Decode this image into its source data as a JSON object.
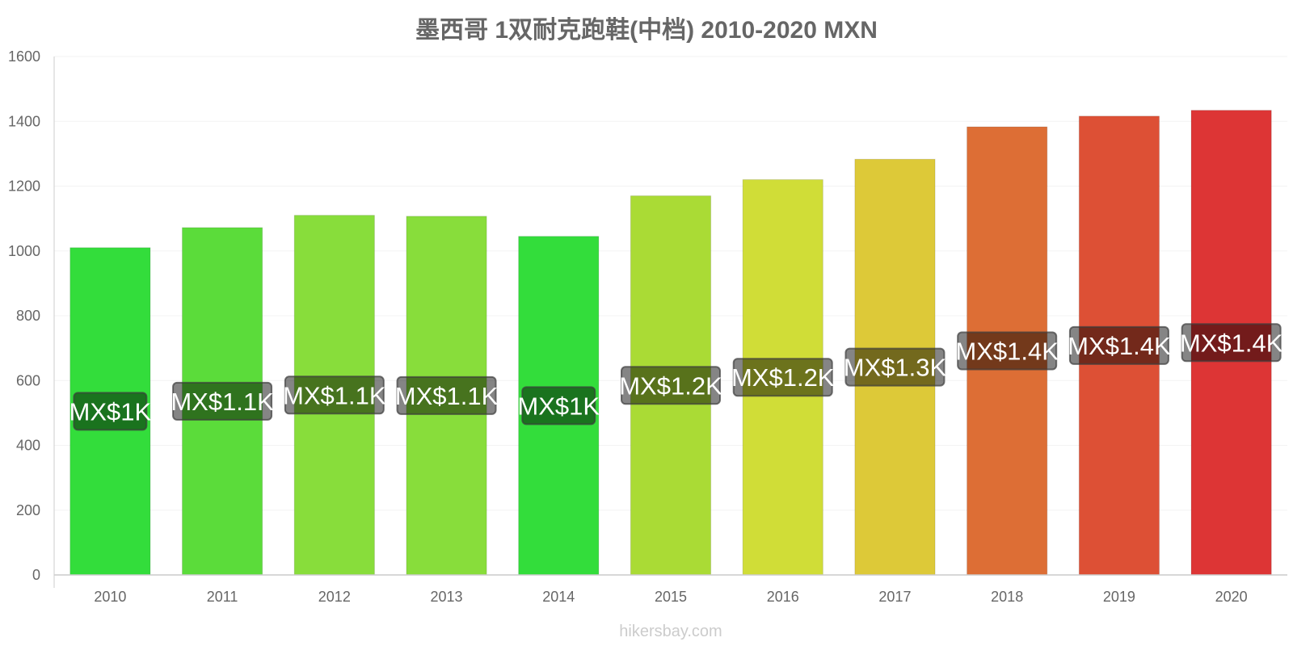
{
  "chart_data": {
    "type": "bar",
    "title": "墨西哥 1双耐克跑鞋(中档) 2010-2020 MXN",
    "xlabel": "",
    "ylabel": "",
    "ylim": [
      0,
      1600
    ],
    "yticks": [
      0,
      200,
      400,
      600,
      800,
      1000,
      1200,
      1400,
      1600
    ],
    "grid": true,
    "legend": "none",
    "categories": [
      "2010",
      "2011",
      "2012",
      "2013",
      "2014",
      "2015",
      "2016",
      "2017",
      "2018",
      "2019",
      "2020"
    ],
    "values": [
      1010,
      1072,
      1110,
      1107,
      1045,
      1170,
      1220,
      1283,
      1383,
      1416,
      1434
    ],
    "data_labels": [
      "MX$1K",
      "MX$1.1K",
      "MX$1.1K",
      "MX$1.1K",
      "MX$1K",
      "MX$1.2K",
      "MX$1.2K",
      "MX$1.3K",
      "MX$1.4K",
      "MX$1.4K",
      "MX$1.4K"
    ],
    "bar_colors": [
      "#33dd3b",
      "#5bdc3a",
      "#88dd3b",
      "#88dd3b",
      "#33dd3b",
      "#aadb35",
      "#d0dd37",
      "#ddc938",
      "#dd6e35",
      "#dd5035",
      "#dd3535"
    ]
  },
  "footer": {
    "source_text": "hikersbay.com"
  }
}
